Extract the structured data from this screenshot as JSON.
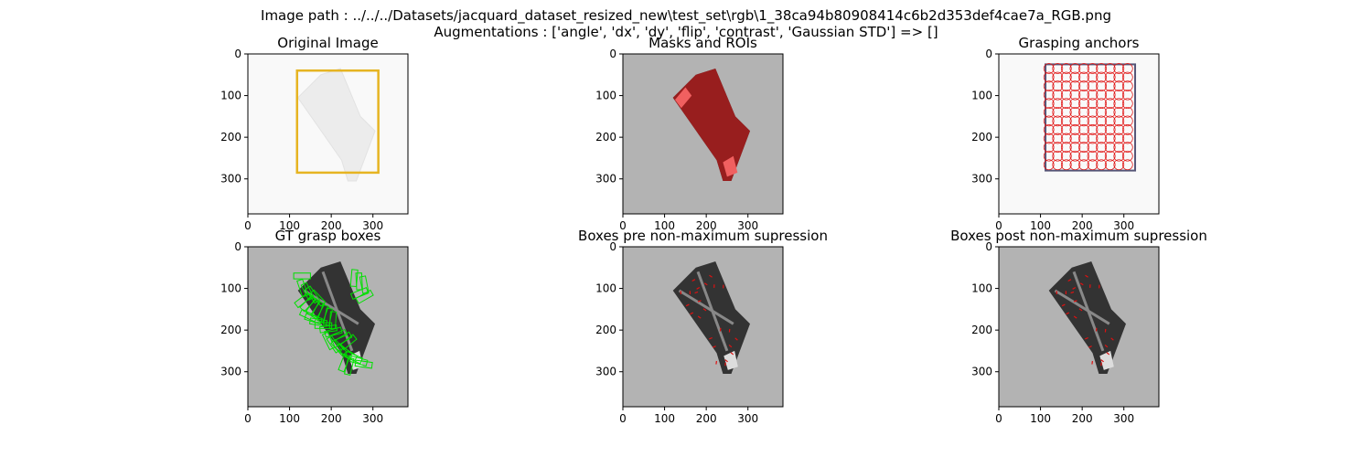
{
  "figure": {
    "suptitle_line1": "Image path : ../../../Datasets/jacquard_dataset_resized_new\\test_set\\rgb\\1_38ca94b80908414c6b2d353def4cae7a_RGB.png",
    "suptitle_line2": "Augmentations : ['angle', 'dx', 'dy', 'flip', 'contrast', 'Gaussian STD'] => []"
  },
  "axis_ticks": {
    "x": [
      "0",
      "100",
      "200",
      "300"
    ],
    "y": [
      "0",
      "100",
      "200",
      "300"
    ],
    "x_values": [
      0,
      100,
      200,
      300
    ],
    "y_values": [
      0,
      100,
      200,
      300
    ],
    "image_size": 384
  },
  "panels": [
    {
      "id": "original",
      "title": "Original Image",
      "background": "#f9f9f9",
      "overlay": "roi-box",
      "overlay_color": "#e6b422"
    },
    {
      "id": "masks",
      "title": "Masks and ROIs",
      "background": "#b3b3b3",
      "overlay": "mask",
      "overlay_color": "#b01818"
    },
    {
      "id": "anchors",
      "title": "Grasping anchors",
      "background": "#f9f9f9",
      "overlay": "anchors",
      "overlay_color": "#e01010"
    },
    {
      "id": "gt",
      "title": "GT grasp boxes",
      "background": "#b3b3b3",
      "overlay": "gt-boxes",
      "overlay_color": "#00e000"
    },
    {
      "id": "pre",
      "title": "Boxes pre non-maximum supression",
      "background": "#b3b3b3",
      "overlay": "pred-boxes",
      "overlay_color": "#e01010"
    },
    {
      "id": "post",
      "title": "Boxes post non-maximum supression",
      "background": "#b3b3b3",
      "overlay": "pred-boxes",
      "overlay_color": "#e01010"
    }
  ]
}
